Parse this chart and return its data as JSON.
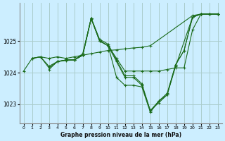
{
  "title": "Graphe pression niveau de la mer (hPa)",
  "background_color": "#cceeff",
  "grid_color": "#aacccc",
  "line_color": "#1a6b1a",
  "xlim": [
    -0.5,
    23.5
  ],
  "ylim": [
    1022.4,
    1026.2
  ],
  "yticks": [
    1023,
    1024,
    1025
  ],
  "xticks": [
    0,
    1,
    2,
    3,
    4,
    5,
    6,
    7,
    8,
    9,
    10,
    11,
    12,
    13,
    14,
    15,
    16,
    17,
    18,
    19,
    20,
    21,
    22,
    23
  ],
  "lines": [
    {
      "x": [
        0,
        1,
        2,
        3,
        4,
        5,
        6,
        7,
        8,
        9,
        10,
        11,
        12,
        13,
        14,
        15,
        20,
        21,
        22,
        23
      ],
      "y": [
        1024.05,
        1024.45,
        1024.5,
        1024.45,
        1024.5,
        1024.45,
        1024.5,
        1024.55,
        1024.6,
        1024.65,
        1024.7,
        1024.72,
        1024.75,
        1024.78,
        1024.8,
        1024.85,
        1025.8,
        1025.85,
        1025.85,
        1025.85
      ]
    },
    {
      "x": [
        1,
        2,
        3,
        4,
        5,
        6,
        7,
        8,
        9,
        10,
        11,
        12,
        13,
        14,
        15,
        16,
        17,
        18,
        20,
        21,
        22,
        23
      ],
      "y": [
        1024.45,
        1024.5,
        1024.2,
        1024.35,
        1024.4,
        1024.4,
        1024.55,
        1025.7,
        1025.0,
        1024.85,
        1024.35,
        1023.85,
        1023.85,
        1023.6,
        1022.8,
        1023.05,
        1023.3,
        1024.2,
        1025.75,
        1025.85,
        1025.85,
        1025.85
      ]
    },
    {
      "x": [
        3,
        4,
        5,
        6,
        7,
        8,
        9,
        10,
        11,
        12,
        13,
        14,
        15,
        16,
        17,
        18,
        19,
        20,
        21,
        22,
        23
      ],
      "y": [
        1024.1,
        1024.35,
        1024.4,
        1024.4,
        1024.6,
        1025.72,
        1025.05,
        1024.9,
        1024.4,
        1023.9,
        1023.9,
        1023.65,
        1022.8,
        1023.1,
        1023.35,
        1024.25,
        1024.7,
        1025.75,
        1025.85,
        1025.85,
        1025.85
      ]
    },
    {
      "x": [
        4,
        5,
        6,
        7,
        8,
        9,
        10,
        11,
        12,
        13,
        14,
        15,
        16,
        17,
        18,
        19,
        20,
        21,
        22,
        23
      ],
      "y": [
        1024.35,
        1024.4,
        1024.4,
        1024.55,
        1025.72,
        1025.0,
        1024.85,
        1024.45,
        1024.05,
        1024.05,
        1024.05,
        1024.05,
        1024.05,
        1024.1,
        1024.15,
        1024.15,
        1025.35,
        1025.85,
        1025.85,
        1025.85
      ]
    },
    {
      "x": [
        1,
        2,
        3,
        4,
        5,
        6,
        7,
        8,
        9,
        10,
        11,
        12,
        13,
        14,
        15,
        16,
        17,
        18,
        19,
        20,
        21,
        22,
        23
      ],
      "y": [
        1024.45,
        1024.5,
        1024.15,
        1024.35,
        1024.38,
        1024.4,
        1024.55,
        1025.72,
        1025.0,
        1024.85,
        1023.85,
        1023.6,
        1023.6,
        1023.55,
        1022.75,
        1023.1,
        1023.3,
        1024.25,
        1024.7,
        1025.75,
        1025.85,
        1025.85,
        1025.85
      ]
    }
  ]
}
